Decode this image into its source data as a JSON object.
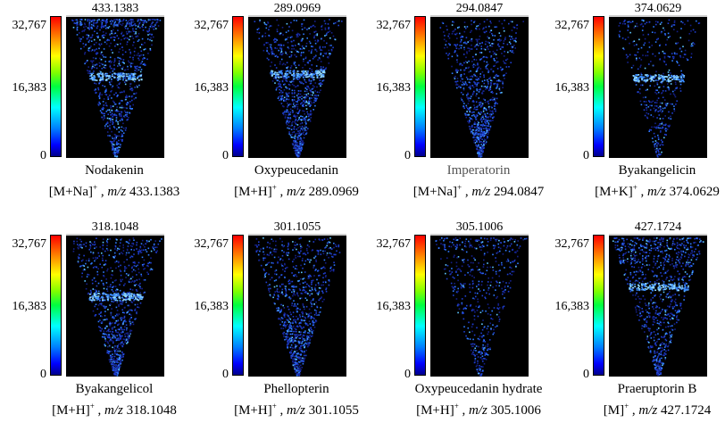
{
  "colorbar": {
    "max_label": "32,767",
    "mid_label": "16,383",
    "min_label": "0"
  },
  "panels": [
    {
      "top_mz": "433.1383",
      "name": "Nodakenin",
      "ion": "[M+Na]",
      "charge": "+",
      "mz_prefix": "m/z",
      "mz": "433.1383",
      "band": 0.42,
      "density": "high-top"
    },
    {
      "top_mz": "289.0969",
      "name": "Oxypeucedanin",
      "ion": "[M+H]",
      "charge": "+",
      "mz_prefix": "m/z",
      "mz": "289.0969",
      "band": 0.4,
      "density": "band"
    },
    {
      "top_mz": "294.0847",
      "name": "Imperatorin",
      "ion": "[M+Na]",
      "charge": "+",
      "mz_prefix": "m/z",
      "mz": "294.0847",
      "band": 0,
      "density": "uniform"
    },
    {
      "top_mz": "374.0629",
      "name": "Byakangelicin",
      "ion": "[M+K]",
      "charge": "+",
      "mz_prefix": "m/z",
      "mz": "374.0629",
      "band": 0.43,
      "density": "band-sparse"
    },
    {
      "top_mz": "318.1048",
      "name": "Byakangelicol",
      "ion": "[M+H]",
      "charge": "+",
      "mz_prefix": "m/z",
      "mz": "318.1048",
      "band": 0.43,
      "density": "uniform"
    },
    {
      "top_mz": "301.1055",
      "name": "Phellopterin",
      "ion": "[M+H]",
      "charge": "+",
      "mz_prefix": "m/z",
      "mz": "301.1055",
      "band": 0,
      "density": "uniform"
    },
    {
      "top_mz": "305.1006",
      "name": "Oxypeucedanin hydrate",
      "ion": "[M+H]",
      "charge": "+",
      "mz_prefix": "m/z",
      "mz": "305.1006",
      "band": 0,
      "density": "top"
    },
    {
      "top_mz": "427.1724",
      "name": "Praeruptorin B",
      "ion": "[M]",
      "charge": "+",
      "mz_prefix": "m/z",
      "mz": "427.1724",
      "band": 0.36,
      "density": "high-top"
    }
  ]
}
